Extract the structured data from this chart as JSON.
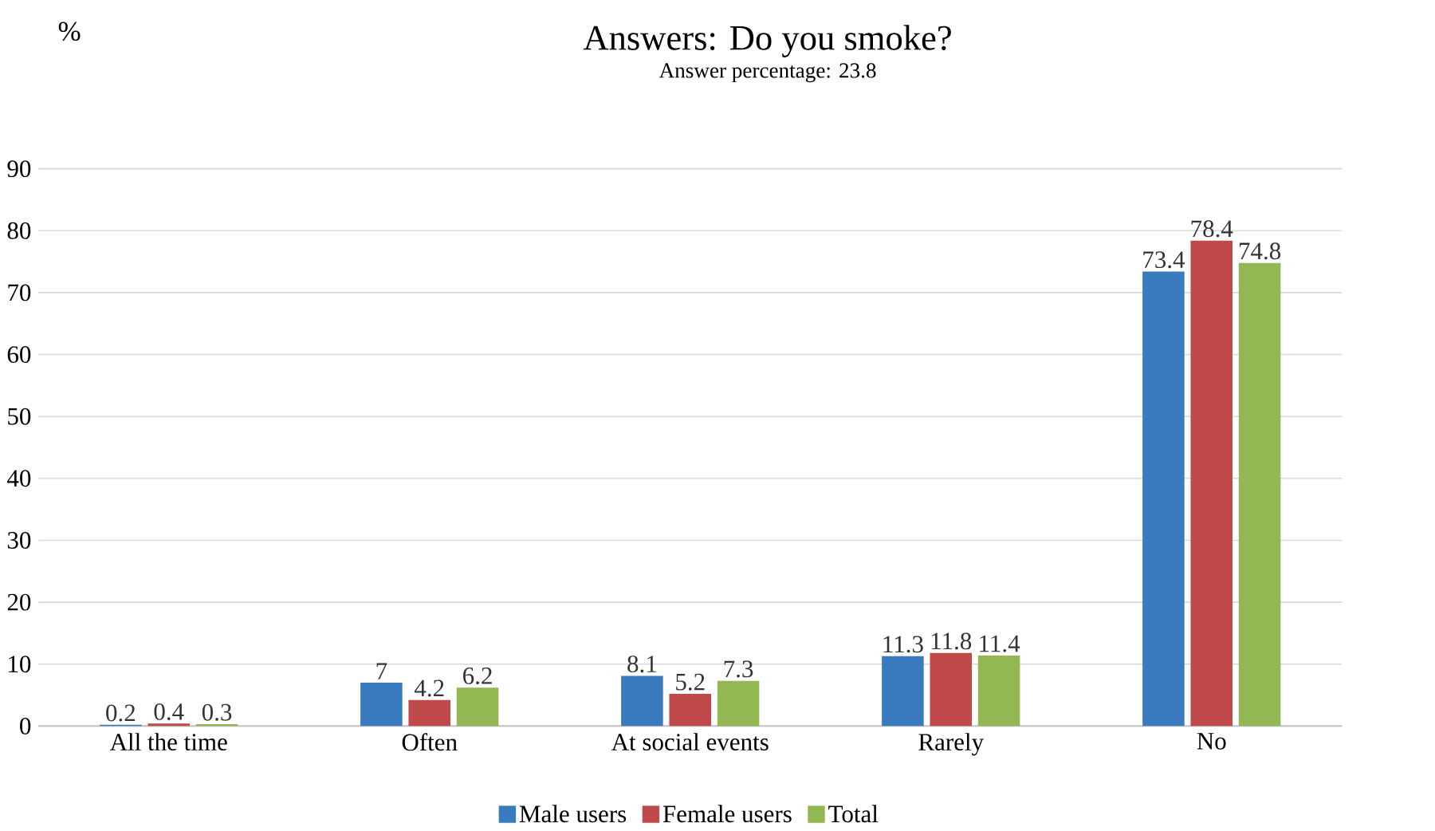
{
  "chart_data": {
    "type": "bar",
    "title": "Answers: Do you smoke?",
    "subtitle": "Answer percentage: 23.8",
    "ylabel": "%",
    "categories": [
      "All the time",
      "Often",
      "At social events",
      "Rarely",
      "No"
    ],
    "series": [
      {
        "name": "Male users",
        "color": "#3a7bbf",
        "values": [
          0.2,
          7,
          8.1,
          11.3,
          73.4
        ]
      },
      {
        "name": "Female users",
        "color": "#c0494a",
        "values": [
          0.4,
          4.2,
          5.2,
          11.8,
          78.4
        ]
      },
      {
        "name": "Total",
        "color": "#93b752",
        "values": [
          0.3,
          6.2,
          7.3,
          11.4,
          74.8
        ]
      }
    ],
    "ylim": [
      0,
      90
    ],
    "yticks": [
      0,
      10,
      20,
      30,
      40,
      50,
      60,
      70,
      80,
      90
    ],
    "grid": "y",
    "legend": "bottom",
    "data_labels": true
  }
}
